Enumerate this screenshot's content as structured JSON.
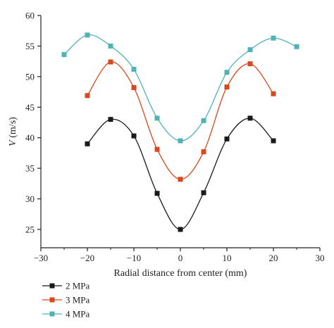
{
  "chart_data": {
    "type": "line",
    "title": "",
    "xlabel": "Radial distance from center (mm)",
    "ylabel_var": "V",
    "ylabel_unit": " (m/s)",
    "xlim": [
      -30,
      30
    ],
    "ylim": [
      22,
      60
    ],
    "x_ticks": [
      -30,
      -20,
      -10,
      0,
      10,
      20,
      30
    ],
    "y_ticks": [
      25,
      30,
      35,
      40,
      45,
      50,
      55,
      60
    ],
    "grid": false,
    "legend_position": "bottom-left",
    "series": [
      {
        "name": "2 MPa",
        "color": "#1a1a1a",
        "marker": "square",
        "x": [
          -20,
          -15,
          -10,
          -5,
          0,
          5,
          10,
          15,
          20
        ],
        "y": [
          39.0,
          43.0,
          40.3,
          30.9,
          25.0,
          31.0,
          39.8,
          43.2,
          39.5
        ]
      },
      {
        "name": "3 MPa",
        "color": "#d9481c",
        "marker": "square",
        "x": [
          -20,
          -15,
          -10,
          -5,
          0,
          5,
          10,
          15,
          20
        ],
        "y": [
          46.9,
          52.4,
          48.2,
          38.1,
          33.2,
          37.7,
          48.3,
          52.1,
          47.2
        ]
      },
      {
        "name": "4 MPa",
        "color": "#4fb3b6",
        "marker": "square",
        "x": [
          -25,
          -20,
          -15,
          -10,
          -5,
          0,
          5,
          10,
          15,
          20,
          25
        ],
        "y": [
          53.6,
          56.8,
          55.0,
          51.2,
          43.2,
          39.5,
          42.8,
          50.7,
          54.4,
          56.3,
          54.9
        ]
      }
    ]
  }
}
